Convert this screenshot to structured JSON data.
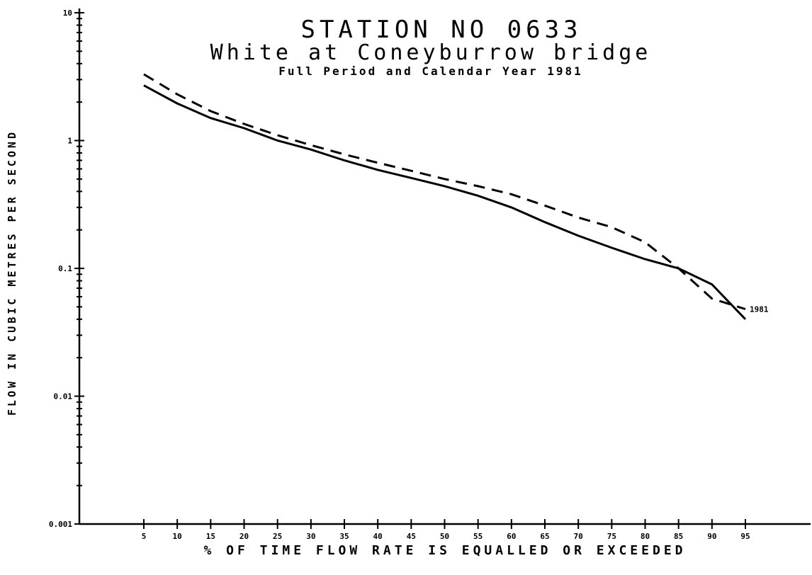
{
  "chart_data": {
    "type": "line",
    "title": "STATION NO 0633",
    "subtitle": "White at Coneyburrow bridge",
    "subtitle2": "Full Period and Calendar Year 1981",
    "xlabel": "% OF TIME FLOW RATE IS EQUALLED OR EXCEEDED",
    "ylabel": "FLOW IN CUBIC METRES PER SECOND",
    "y_scale": "log",
    "ylim": [
      0.001,
      10
    ],
    "y_ticks": [
      {
        "value": 0.001,
        "label": "0.001"
      },
      {
        "value": 0.01,
        "label": "0.01"
      },
      {
        "value": 0.1,
        "label": "0.1"
      },
      {
        "value": 1,
        "label": "1"
      },
      {
        "value": 10,
        "label": "10"
      }
    ],
    "x_ticks": [
      {
        "value": 5,
        "label": "5"
      },
      {
        "value": 10,
        "label": "10"
      },
      {
        "value": 15,
        "label": "15"
      },
      {
        "value": 20,
        "label": "20"
      },
      {
        "value": 25,
        "label": "25"
      },
      {
        "value": 30,
        "label": "30"
      },
      {
        "value": 35,
        "label": "35"
      },
      {
        "value": 40,
        "label": "40"
      },
      {
        "value": 45,
        "label": "45"
      },
      {
        "value": 50,
        "label": "50"
      },
      {
        "value": 55,
        "label": "55"
      },
      {
        "value": 60,
        "label": "60"
      },
      {
        "value": 65,
        "label": "65"
      },
      {
        "value": 70,
        "label": "70"
      },
      {
        "value": 75,
        "label": "75"
      },
      {
        "value": 80,
        "label": "80"
      },
      {
        "value": 85,
        "label": "85"
      },
      {
        "value": 90,
        "label": "90"
      },
      {
        "value": 95,
        "label": "95"
      }
    ],
    "grid": false,
    "series": [
      {
        "name": "",
        "style": "solid",
        "x": [
          5,
          10,
          15,
          20,
          25,
          30,
          35,
          40,
          45,
          50,
          55,
          60,
          65,
          70,
          75,
          80,
          85,
          90,
          95
        ],
        "values": [
          2.7,
          1.95,
          1.5,
          1.25,
          1.0,
          0.85,
          0.7,
          0.59,
          0.51,
          0.44,
          0.37,
          0.3,
          0.23,
          0.18,
          0.145,
          0.118,
          0.1,
          0.075,
          0.04
        ]
      },
      {
        "name": "1981",
        "style": "dashed",
        "x": [
          5,
          10,
          15,
          20,
          25,
          30,
          35,
          40,
          45,
          50,
          55,
          60,
          65,
          70,
          75,
          80,
          85,
          90,
          95
        ],
        "values": [
          3.3,
          2.3,
          1.7,
          1.35,
          1.1,
          0.92,
          0.78,
          0.67,
          0.58,
          0.5,
          0.44,
          0.38,
          0.31,
          0.25,
          0.21,
          0.16,
          0.1,
          0.058,
          0.048
        ]
      }
    ]
  }
}
